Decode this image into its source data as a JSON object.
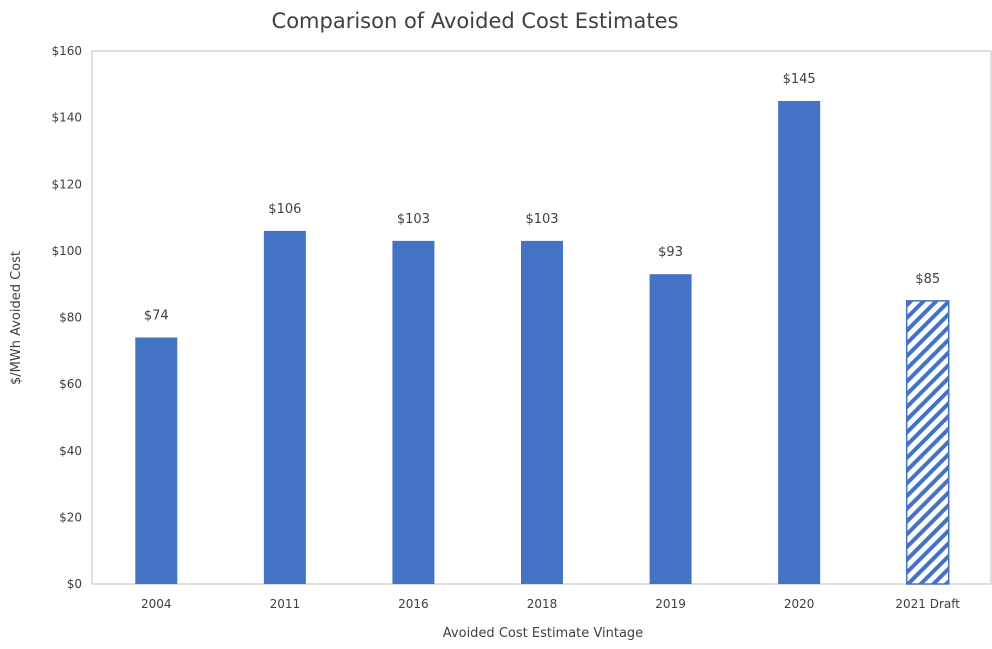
{
  "chart_data": {
    "type": "bar",
    "title": "Comparison of Avoided Cost Estimates",
    "xlabel": "Avoided Cost Estimate Vintage",
    "ylabel": "$/MWh Avoided Cost",
    "categories": [
      "2004",
      "2011",
      "2016",
      "2018",
      "2019",
      "2020",
      "2021 Draft"
    ],
    "values": [
      74,
      106,
      103,
      103,
      93,
      145,
      85
    ],
    "data_labels": [
      "$74",
      "$106",
      "$103",
      "$103",
      "$93",
      "$145",
      "$85"
    ],
    "ylim": [
      0,
      160
    ],
    "yticks": [
      0,
      20,
      40,
      60,
      80,
      100,
      120,
      140,
      160
    ],
    "ytick_labels": [
      "$0",
      "$20",
      "$40",
      "$60",
      "$80",
      "$100",
      "$120",
      "$140",
      "$160"
    ],
    "bar_styles": [
      "solid",
      "solid",
      "solid",
      "solid",
      "solid",
      "solid",
      "hatched"
    ],
    "bar_color": "#4472c4",
    "axis_color": "#bfbfbf",
    "text_color": "#404040",
    "grid": false,
    "legend": "none"
  }
}
